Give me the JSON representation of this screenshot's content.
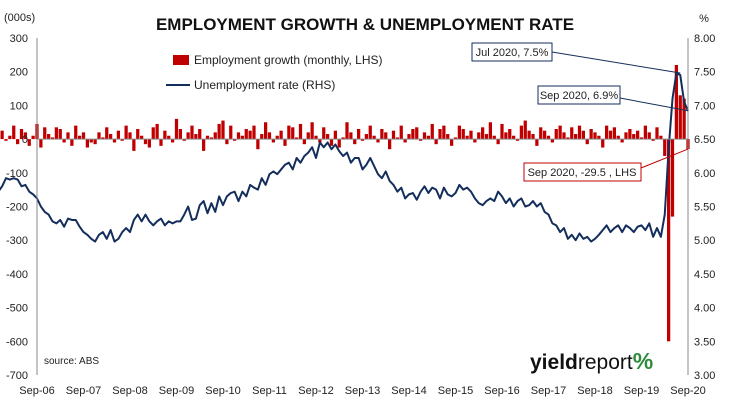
{
  "chart_data": {
    "type": "bar+line",
    "title": "EMPLOYMENT GROWTH & UNEMPLOYMENT RATE",
    "left_axis_unit": "(000s)",
    "right_axis_unit": "%",
    "left_ylim": [
      -700,
      300
    ],
    "left_ticks": [
      "300",
      "200",
      "100",
      "0",
      "-100",
      "-200",
      "-300",
      "-400",
      "-500",
      "-600",
      "-700"
    ],
    "right_ylim": [
      3.0,
      8.0
    ],
    "right_ticks": [
      "8.00",
      "7.50",
      "7.00",
      "6.50",
      "6.00",
      "5.50",
      "5.00",
      "4.50",
      "4.00",
      "3.50",
      "3.00"
    ],
    "x_ticks": [
      "Sep-06",
      "Sep-07",
      "Sep-08",
      "Sep-09",
      "Sep-10",
      "Sep-11",
      "Sep-12",
      "Sep-13",
      "Sep-14",
      "Sep-15",
      "Sep-16",
      "Sep-17",
      "Sep-18",
      "Sep-19",
      "Sep-20"
    ],
    "x_start": "Sep-06",
    "x_end": "Sep-20",
    "grid": false,
    "legend_position": "top-left",
    "series": [
      {
        "name": "Employment growth (monthly, LHS)",
        "type": "bar",
        "axis": "left",
        "color": "#c00000",
        "values": [
          40,
          -30,
          30,
          10,
          50,
          -20,
          20,
          -10,
          40,
          25,
          -5,
          10,
          40,
          -15,
          30,
          20,
          -20,
          10,
          45,
          -25,
          35,
          15,
          5,
          35,
          30,
          -10,
          20,
          -20,
          40,
          10,
          20,
          -25,
          -10,
          -15,
          20,
          5,
          35,
          15,
          -10,
          25,
          -5,
          40,
          20,
          -35,
          30,
          10,
          -15,
          -25,
          35,
          45,
          -20,
          25,
          10,
          -10,
          60,
          30,
          -5,
          20,
          40,
          15,
          30,
          -35,
          10,
          5,
          20,
          45,
          55,
          -15,
          40,
          -5,
          20,
          10,
          30,
          25,
          40,
          -30,
          15,
          50,
          20,
          -10,
          10,
          25,
          -20,
          40,
          35,
          5,
          45,
          -15,
          20,
          50,
          10,
          -10,
          35,
          15,
          -20,
          25,
          -25,
          5,
          50,
          20,
          -15,
          30,
          -5,
          15,
          40,
          10,
          -10,
          30,
          20,
          -30,
          25,
          5,
          40,
          -10,
          15,
          30,
          35,
          -5,
          20,
          10,
          45,
          -15,
          30,
          40,
          15,
          -20,
          5,
          40,
          30,
          10,
          25,
          -10,
          20,
          35,
          15,
          50,
          10,
          -15,
          45,
          20,
          30,
          10,
          -5,
          40,
          55,
          25,
          15,
          -20,
          35,
          25,
          10,
          -10,
          30,
          40,
          20,
          5,
          35,
          15,
          40,
          25,
          -15,
          30,
          20,
          10,
          -25,
          40,
          25,
          35,
          10,
          -10,
          20,
          30,
          15,
          25,
          5,
          40,
          20,
          -5,
          35,
          10,
          -50,
          -600,
          -230,
          220,
          130,
          120,
          -29.5
        ]
      },
      {
        "name": "Unemployment rate (RHS)",
        "type": "line",
        "axis": "right",
        "color": "#142e5c",
        "values": [
          4.72,
          4.66,
          4.42,
          4.38,
          4.48,
          4.42,
          4.55,
          4.6,
          4.52,
          4.48,
          4.32,
          4.22,
          4.25,
          4.2,
          4.24,
          4.12,
          4.22,
          4.28,
          4.2,
          4.13,
          4.0,
          3.98,
          4.12,
          4.22,
          4.28,
          4.18,
          4.08,
          4.05,
          4.1,
          4.25,
          4.22,
          4.3,
          4.25,
          4.12,
          4.02,
          4.1,
          4.28,
          4.18,
          4.32,
          4.42,
          4.38,
          4.65,
          4.75,
          4.88,
          5.02,
          5.25,
          5.48,
          5.62,
          5.78,
          5.72,
          5.8,
          5.92,
          5.9,
          5.92,
          5.9,
          5.8,
          5.82,
          5.72,
          5.68,
          5.62,
          5.5,
          5.42,
          5.38,
          5.28,
          5.25,
          5.3,
          5.2,
          5.32,
          5.3,
          5.3,
          5.2,
          5.12,
          5.08,
          5.02,
          4.98,
          5.08,
          5.12,
          5.02,
          5.15,
          4.98,
          5.02,
          5.12,
          5.18,
          5.12,
          5.3,
          5.38,
          5.28,
          5.38,
          5.28,
          5.22,
          5.28,
          5.32,
          5.22,
          5.28,
          5.25,
          5.28,
          5.28,
          5.38,
          5.5,
          5.3,
          5.32,
          5.52,
          5.58,
          5.4,
          5.55,
          5.42,
          5.65,
          5.52,
          5.65,
          5.7,
          5.72,
          5.58,
          5.72,
          5.65,
          5.82,
          5.78,
          5.75,
          5.92,
          5.82,
          5.98,
          6.02,
          5.98,
          6.05,
          6.12,
          6.15,
          6.05,
          6.22,
          6.15,
          6.25,
          6.3,
          6.38,
          6.22,
          6.45,
          6.38,
          6.45,
          6.35,
          6.42,
          6.32,
          6.25,
          6.3,
          6.15,
          6.22,
          6.22,
          6.05,
          6.12,
          6.22,
          6.1,
          5.98,
          5.92,
          6.02,
          5.88,
          5.82,
          5.72,
          5.78,
          5.62,
          5.68,
          5.7,
          5.6,
          5.72,
          5.8,
          5.7,
          5.78,
          5.75,
          5.62,
          5.78,
          5.68,
          5.65,
          5.7,
          5.82,
          5.75,
          5.78,
          5.72,
          5.62,
          5.55,
          5.52,
          5.58,
          5.62,
          5.58,
          5.72,
          5.65,
          5.55,
          5.62,
          5.5,
          5.58,
          5.62,
          5.5,
          5.52,
          5.58,
          5.5,
          5.55,
          5.42,
          5.38,
          5.25,
          5.22,
          5.12,
          5.18,
          5.02,
          5.08,
          5.0,
          5.1,
          5.02,
          5.05,
          4.98,
          5.02,
          5.08,
          5.15,
          5.22,
          5.12,
          5.18,
          5.22,
          5.12,
          5.22,
          5.18,
          5.12,
          5.2,
          5.22,
          5.15,
          5.25,
          5.05,
          5.18,
          5.05,
          5.38,
          6.35,
          7.1,
          7.48,
          7.45,
          7.05,
          6.92
        ]
      }
    ],
    "annotations": [
      {
        "text": "Jul 2020, 7.5%",
        "series": "Unemployment rate (RHS)",
        "x_label": "Jul 2020",
        "value": 7.5
      },
      {
        "text": "Sep 2020, 6.9%",
        "series": "Unemployment rate (RHS)",
        "x_label": "Sep 2020",
        "value": 6.9
      },
      {
        "text": "Sep 2020, -29.5 , LHS",
        "series": "Employment growth (monthly, LHS)",
        "x_label": "Sep 2020",
        "value": -29.5
      }
    ],
    "source": "source: ABS"
  },
  "branding": {
    "logo_part1": "yield",
    "logo_part2": "report",
    "logo_part3": "%"
  },
  "colors": {
    "bar": "#c00000",
    "line": "#142e5c",
    "axis": "#888888",
    "annotation_line_red": "#c00000",
    "annotation_line_navy": "#142e5c",
    "logo_green": "#2e8b3a",
    "logo_red": "#c00000"
  }
}
